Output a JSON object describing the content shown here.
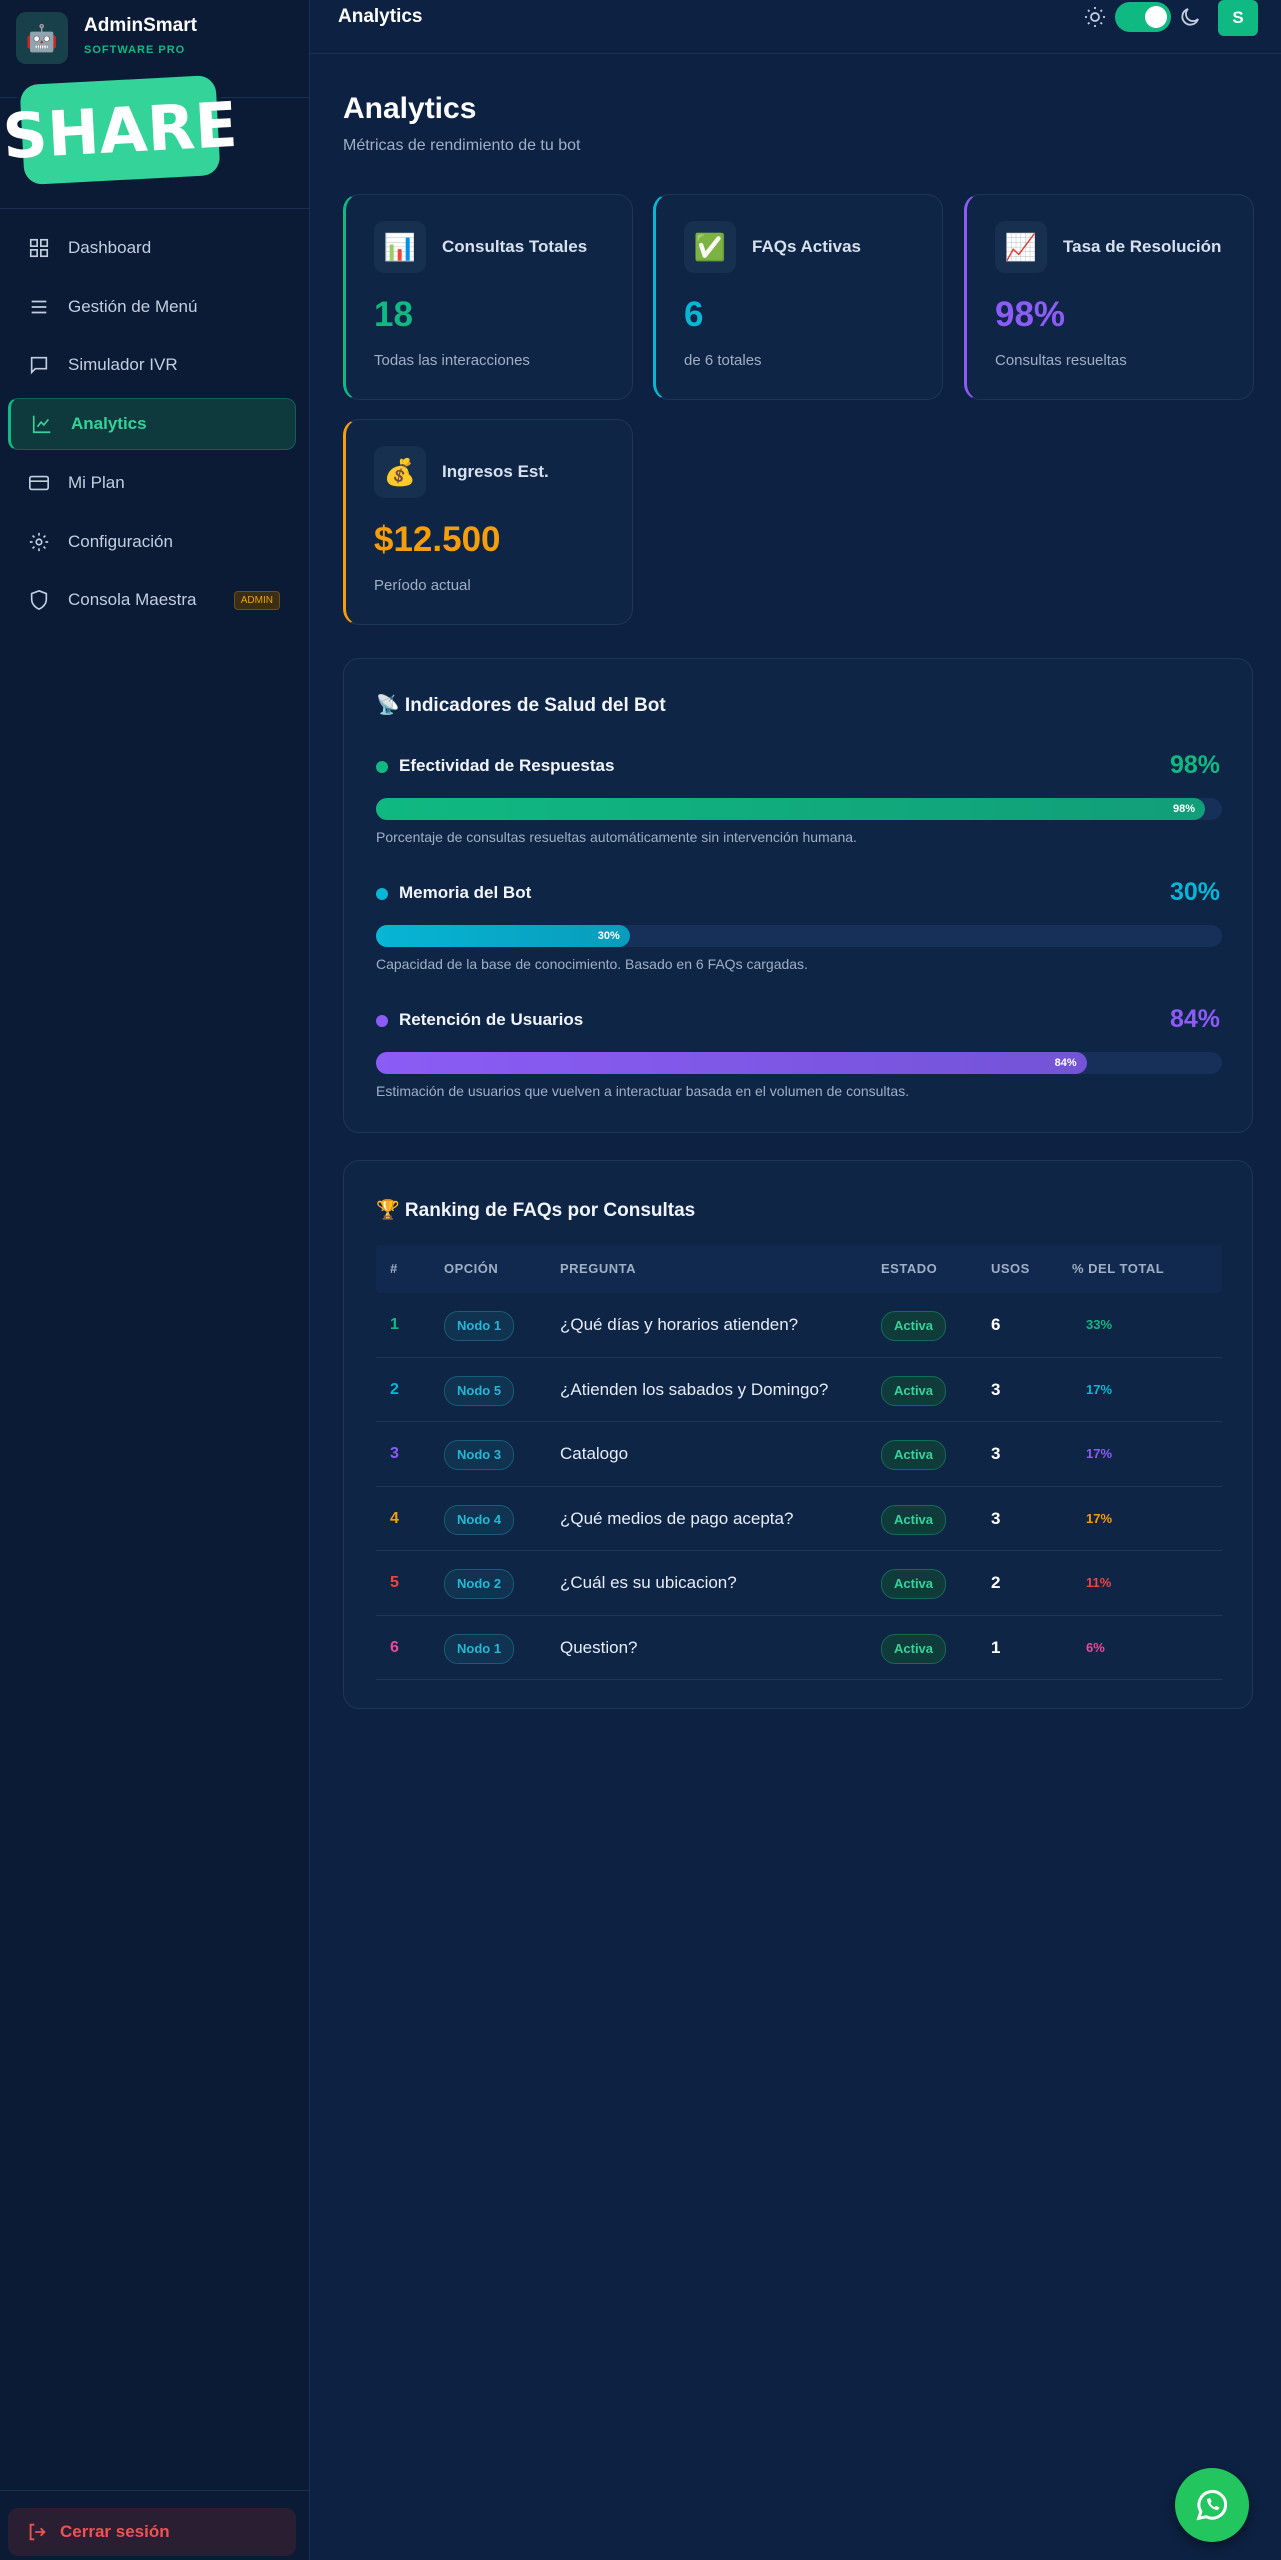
{
  "sticker": "SHARE",
  "brand": {
    "name": "AdminSmart",
    "tagline": "SOFTWARE PRO"
  },
  "nav": [
    {
      "label": "Dashboard"
    },
    {
      "label": "Gestión de Menú"
    },
    {
      "label": "Simulador IVR"
    },
    {
      "label": "Analytics",
      "active": true
    },
    {
      "label": "Mi Plan"
    },
    {
      "label": "Configuración"
    },
    {
      "label": "Consola Maestra",
      "badge": "ADMIN"
    }
  ],
  "logout": "Cerrar sesión",
  "header": {
    "title": "Analytics",
    "avatar": "S"
  },
  "page": {
    "title": "Analytics",
    "subtitle": "Métricas de rendimiento de tu bot"
  },
  "stats": [
    {
      "icon": "📊",
      "label": "Consultas Totales",
      "value": "18",
      "note": "Todas las interacciones",
      "color": "#10b981"
    },
    {
      "icon": "✅",
      "label": "FAQs Activas",
      "value": "6",
      "note": "de 6 totales",
      "color": "#06b6d4"
    },
    {
      "icon": "📈",
      "label": "Tasa de Resolución",
      "value": "98%",
      "note": "Consultas resueltas",
      "color": "#8b5cf6"
    },
    {
      "icon": "💰",
      "label": "Ingresos Est.",
      "value": "$12.500",
      "note": "Período actual",
      "color": "#f59e0b"
    }
  ],
  "health": {
    "title": "📡 Indicadores de Salud del Bot",
    "items": [
      {
        "name": "Efectividad de Respuestas",
        "value": 98,
        "label": "98%",
        "description": "Porcentaje de consultas resueltas automáticamente sin intervención humana.",
        "color": "#10b981"
      },
      {
        "name": "Memoria del Bot",
        "value": 30,
        "label": "30%",
        "description": "Capacidad de la base de conocimiento. Basado en 6 FAQs cargadas.",
        "color": "#06b6d4"
      },
      {
        "name": "Retención de Usuarios",
        "value": 84,
        "label": "84%",
        "description": "Estimación de usuarios que vuelven a interactuar basada en el volumen de consultas.",
        "color": "#8b5cf6"
      }
    ]
  },
  "ranking": {
    "title": "🏆 Ranking de FAQs por Consultas",
    "columns": [
      "#",
      "OPCIÓN",
      "PREGUNTA",
      "ESTADO",
      "USOS",
      "% DEL TOTAL"
    ],
    "rank_colors": [
      "#10b981",
      "#06b6d4",
      "#8b5cf6",
      "#f59e0b",
      "#ef4444",
      "#ec4899"
    ],
    "rows": [
      [
        "1",
        "Nodo 1",
        "¿Qué días y horarios atienden?",
        "Activa",
        "6",
        "33%"
      ],
      [
        "2",
        "Nodo 5",
        "¿Atienden los sabados y Domingo?",
        "Activa",
        "3",
        "17%"
      ],
      [
        "3",
        "Nodo 3",
        "Catalogo",
        "Activa",
        "3",
        "17%"
      ],
      [
        "4",
        "Nodo 4",
        "¿Qué medios de pago acepta?",
        "Activa",
        "3",
        "17%"
      ],
      [
        "5",
        "Nodo 2",
        "¿Cuál es su ubicacion?",
        "Activa",
        "2",
        "11%"
      ],
      [
        "6",
        "Nodo 1",
        "Question?",
        "Activa",
        "1",
        "6%"
      ]
    ]
  }
}
